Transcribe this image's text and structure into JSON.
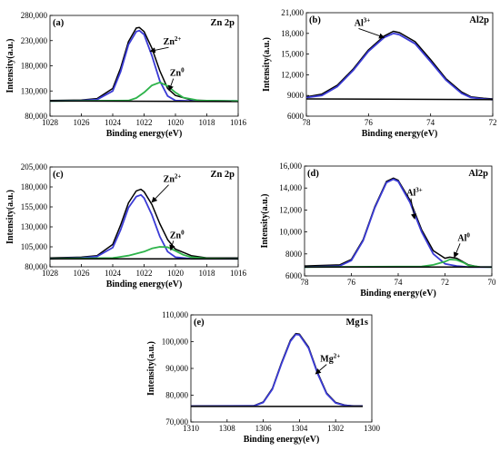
{
  "figure": {
    "panels_order": [
      "a",
      "b",
      "c",
      "d",
      "e"
    ]
  },
  "chart_data": [
    {
      "type": "line",
      "panel_label": "(a)",
      "title": "Zn 2p",
      "xlabel": "Binding energy(eV)",
      "ylabel": "Intensity(a.u.)",
      "xlim": [
        1028,
        1016
      ],
      "x_reversed": true,
      "ylim": [
        80000,
        280000
      ],
      "x_ticks": [
        "1028",
        "1026",
        "1024",
        "1022",
        "1020",
        "1018",
        "1016"
      ],
      "y_ticks": [
        "80,000",
        "130,000",
        "180,000",
        "230,000",
        "280,000"
      ],
      "series": [
        {
          "color": "#000000",
          "x": [
            1028,
            1026,
            1025,
            1024,
            1023.5,
            1023,
            1022.5,
            1022.3,
            1022,
            1021.5,
            1021,
            1020.5,
            1020,
            1019,
            1018,
            1016
          ],
          "y": [
            111000,
            112000,
            115000,
            135000,
            175000,
            228000,
            255000,
            256000,
            248000,
            215000,
            170000,
            135000,
            121000,
            112000,
            111000,
            110000
          ]
        },
        {
          "color": "#3b3bd6",
          "x": [
            1028,
            1026,
            1025,
            1024,
            1023.5,
            1023,
            1022.5,
            1022.3,
            1022,
            1021.5,
            1021,
            1020.5,
            1020,
            1019,
            1016
          ],
          "y": [
            110000,
            111000,
            113000,
            130000,
            168000,
            222000,
            248000,
            250000,
            242000,
            200000,
            150000,
            120000,
            111000,
            110000,
            110000
          ]
        },
        {
          "color": "#2db34a",
          "x": [
            1028,
            1023,
            1022.5,
            1022,
            1021.5,
            1021,
            1020.5,
            1020,
            1019.5,
            1018.5,
            1016
          ],
          "y": [
            110000,
            111000,
            116000,
            127000,
            141000,
            147000,
            140000,
            127000,
            117000,
            111000,
            110000
          ]
        },
        {
          "color": "#000000",
          "x": [
            1028,
            1016
          ],
          "y": [
            110000,
            109000
          ]
        }
      ],
      "annotations": [
        {
          "text": "Zn",
          "sup": "2+",
          "x": 1020.2,
          "y": 222000,
          "tx": 1021.6,
          "ty": 209000
        },
        {
          "text": "Zn",
          "sup": "0",
          "x": 1019.9,
          "y": 160000,
          "tx": 1020.4,
          "ty": 131000
        }
      ]
    },
    {
      "type": "line",
      "panel_label": "(b)",
      "title": "Al2p",
      "xlabel": "Binding energy(eV)",
      "ylabel": "Intensity(a.u.)",
      "xlim": [
        78,
        72
      ],
      "x_reversed": true,
      "ylim": [
        6000,
        21000
      ],
      "x_ticks": [
        "78",
        "76",
        "74",
        "72"
      ],
      "y_ticks": [
        "6000",
        "9000",
        "12,000",
        "15,000",
        "18,000",
        "21,000"
      ],
      "series": [
        {
          "color": "#000000",
          "x": [
            78,
            77.5,
            77,
            76.5,
            76,
            75.5,
            75.2,
            75,
            74.5,
            74,
            73.5,
            73,
            72.7,
            72.3,
            72
          ],
          "y": [
            8800,
            9200,
            10500,
            12800,
            15600,
            17600,
            18300,
            18100,
            16800,
            14200,
            11400,
            9500,
            8800,
            8600,
            8500
          ]
        },
        {
          "color": "#3b3bd6",
          "x": [
            78,
            77.5,
            77,
            76.5,
            76,
            75.5,
            75.2,
            75,
            74.5,
            74,
            73.5,
            73,
            72.7,
            72.3,
            72
          ],
          "y": [
            8700,
            9000,
            10300,
            12600,
            15400,
            17400,
            18000,
            17800,
            16500,
            13900,
            11200,
            9300,
            8700,
            8500,
            8400
          ]
        },
        {
          "color": "#000000",
          "x": [
            78,
            72
          ],
          "y": [
            8500,
            8400
          ]
        }
      ],
      "annotations": [
        {
          "text": "Al",
          "sup": "3+",
          "x": 76.2,
          "y": 19100,
          "tx": 75.5,
          "ty": 17400
        }
      ]
    },
    {
      "type": "line",
      "panel_label": "(c)",
      "title": "Zn 2p",
      "xlabel": "Binding energy(eV)",
      "ylabel": "Intensity(a.u.)",
      "xlim": [
        1028,
        1016
      ],
      "x_reversed": true,
      "ylim": [
        80000,
        205000
      ],
      "x_ticks": [
        "1028",
        "1026",
        "1024",
        "1022",
        "1020",
        "1018",
        "1016"
      ],
      "y_ticks": [
        "80,000",
        "105,000",
        "130,000",
        "155,000",
        "180,000",
        "205,000"
      ],
      "series": [
        {
          "color": "#000000",
          "x": [
            1028,
            1026,
            1025,
            1024,
            1023.5,
            1023,
            1022.5,
            1022.2,
            1022,
            1021.5,
            1021,
            1020.5,
            1020,
            1019,
            1018,
            1016
          ],
          "y": [
            91000,
            92000,
            94000,
            108000,
            132000,
            160000,
            175000,
            177000,
            174000,
            158000,
            134000,
            114000,
            102000,
            94000,
            91000,
            91000
          ]
        },
        {
          "color": "#3b3bd6",
          "x": [
            1028,
            1026,
            1025,
            1024,
            1023.5,
            1023,
            1022.5,
            1022.2,
            1022,
            1021.5,
            1021,
            1020.5,
            1020,
            1019,
            1016
          ],
          "y": [
            90000,
            91000,
            93000,
            104000,
            126000,
            154000,
            168000,
            170000,
            166000,
            145000,
            118000,
            99000,
            92000,
            90000,
            90000
          ]
        },
        {
          "color": "#2db34a",
          "x": [
            1028,
            1024,
            1023,
            1022,
            1021.5,
            1021,
            1020.5,
            1020,
            1019.5,
            1019,
            1018,
            1016
          ],
          "y": [
            90000,
            91000,
            94000,
            99000,
            103000,
            105000,
            104500,
            100000,
            95000,
            92000,
            90500,
            90000
          ]
        },
        {
          "color": "#000000",
          "x": [
            1028,
            1016
          ],
          "y": [
            90000,
            90000
          ]
        }
      ],
      "annotations": [
        {
          "text": "Zn",
          "sup": "2+",
          "x": 1020.2,
          "y": 186000,
          "tx": 1021.5,
          "ty": 161000
        },
        {
          "text": "Zn",
          "sup": "0",
          "x": 1019.9,
          "y": 116000,
          "tx": 1020.3,
          "ty": 101000
        }
      ]
    },
    {
      "type": "line",
      "panel_label": "(d)",
      "title": "Al2p",
      "xlabel": "Binding energy(eV)",
      "ylabel": "Intensity(a.u.)",
      "xlim": [
        78,
        70
      ],
      "x_reversed": true,
      "ylim": [
        6000,
        16000
      ],
      "x_ticks": [
        "78",
        "76",
        "74",
        "72",
        "70"
      ],
      "y_ticks": [
        "6000",
        "8000",
        "10,000",
        "12,000",
        "14,000",
        "16,000"
      ],
      "series": [
        {
          "color": "#000000",
          "x": [
            78,
            76.5,
            76,
            75.5,
            75,
            74.5,
            74.2,
            74,
            73.5,
            73,
            72.5,
            72,
            71.8,
            71.5,
            71,
            70.5,
            70
          ],
          "y": [
            6900,
            7000,
            7500,
            9300,
            12300,
            14600,
            14900,
            14700,
            12900,
            10200,
            8300,
            7600,
            7700,
            7600,
            7000,
            6800,
            6800
          ]
        },
        {
          "color": "#3b3bd6",
          "x": [
            78,
            76.5,
            76,
            75.5,
            75,
            74.5,
            74.2,
            74,
            73.5,
            73,
            72.5,
            72,
            71.5,
            71,
            70
          ],
          "y": [
            6800,
            6900,
            7400,
            9200,
            12200,
            14500,
            14800,
            14600,
            12700,
            10000,
            8000,
            7100,
            6900,
            6800,
            6800
          ]
        },
        {
          "color": "#2db34a",
          "x": [
            78,
            73,
            72.5,
            72,
            71.8,
            71.5,
            71.2,
            71,
            70.5,
            70
          ],
          "y": [
            6800,
            6850,
            7000,
            7300,
            7500,
            7450,
            7200,
            6950,
            6820,
            6800
          ]
        },
        {
          "color": "#000000",
          "x": [
            78,
            70
          ],
          "y": [
            6800,
            6800
          ]
        }
      ],
      "annotations": [
        {
          "text": "Al",
          "sup": "3+",
          "x": 73.3,
          "y": 13300,
          "tx": 73.3,
          "ty": 11200
        },
        {
          "text": "Al",
          "sup": "0",
          "x": 71.2,
          "y": 9200,
          "tx": 71.6,
          "ty": 7700
        }
      ]
    },
    {
      "type": "line",
      "panel_label": "(e)",
      "title": "Mg1s",
      "xlabel": "Binding energy(eV)",
      "ylabel": "Intensity(a.u.)",
      "xlim": [
        1310,
        1300
      ],
      "x_reversed": true,
      "ylim": [
        70000,
        110000
      ],
      "x_ticks": [
        "1310",
        "1308",
        "1306",
        "1304",
        "1302",
        "1300"
      ],
      "y_ticks": [
        "70,000",
        "80,000",
        "90,000",
        "100,000",
        "110,000"
      ],
      "series": [
        {
          "color": "#000000",
          "x": [
            1310,
            1306.5,
            1306,
            1305.5,
            1305,
            1304.5,
            1304.2,
            1304,
            1303.5,
            1303,
            1302.5,
            1302,
            1301.5,
            1301,
            1300.5
          ],
          "y": [
            76000,
            76100,
            77500,
            82500,
            92000,
            100500,
            103000,
            102800,
            98000,
            88500,
            80800,
            77300,
            76300,
            76000,
            76000
          ]
        },
        {
          "color": "#3b3bd6",
          "x": [
            1310,
            1306.5,
            1306,
            1305.5,
            1305,
            1304.5,
            1304.2,
            1304,
            1303.5,
            1303,
            1302.5,
            1302,
            1301.5,
            1301,
            1300.5
          ],
          "y": [
            75900,
            76000,
            77300,
            82200,
            91600,
            100100,
            102700,
            102500,
            97600,
            88100,
            80500,
            77100,
            76200,
            75900,
            75900
          ]
        },
        {
          "color": "#000000",
          "x": [
            1310,
            1300.5
          ],
          "y": [
            75800,
            75800
          ]
        }
      ],
      "annotations": [
        {
          "text": "Mg",
          "sup": "2+",
          "x": 1302.3,
          "y": 92500,
          "tx": 1303.1,
          "ty": 88000
        }
      ]
    }
  ]
}
